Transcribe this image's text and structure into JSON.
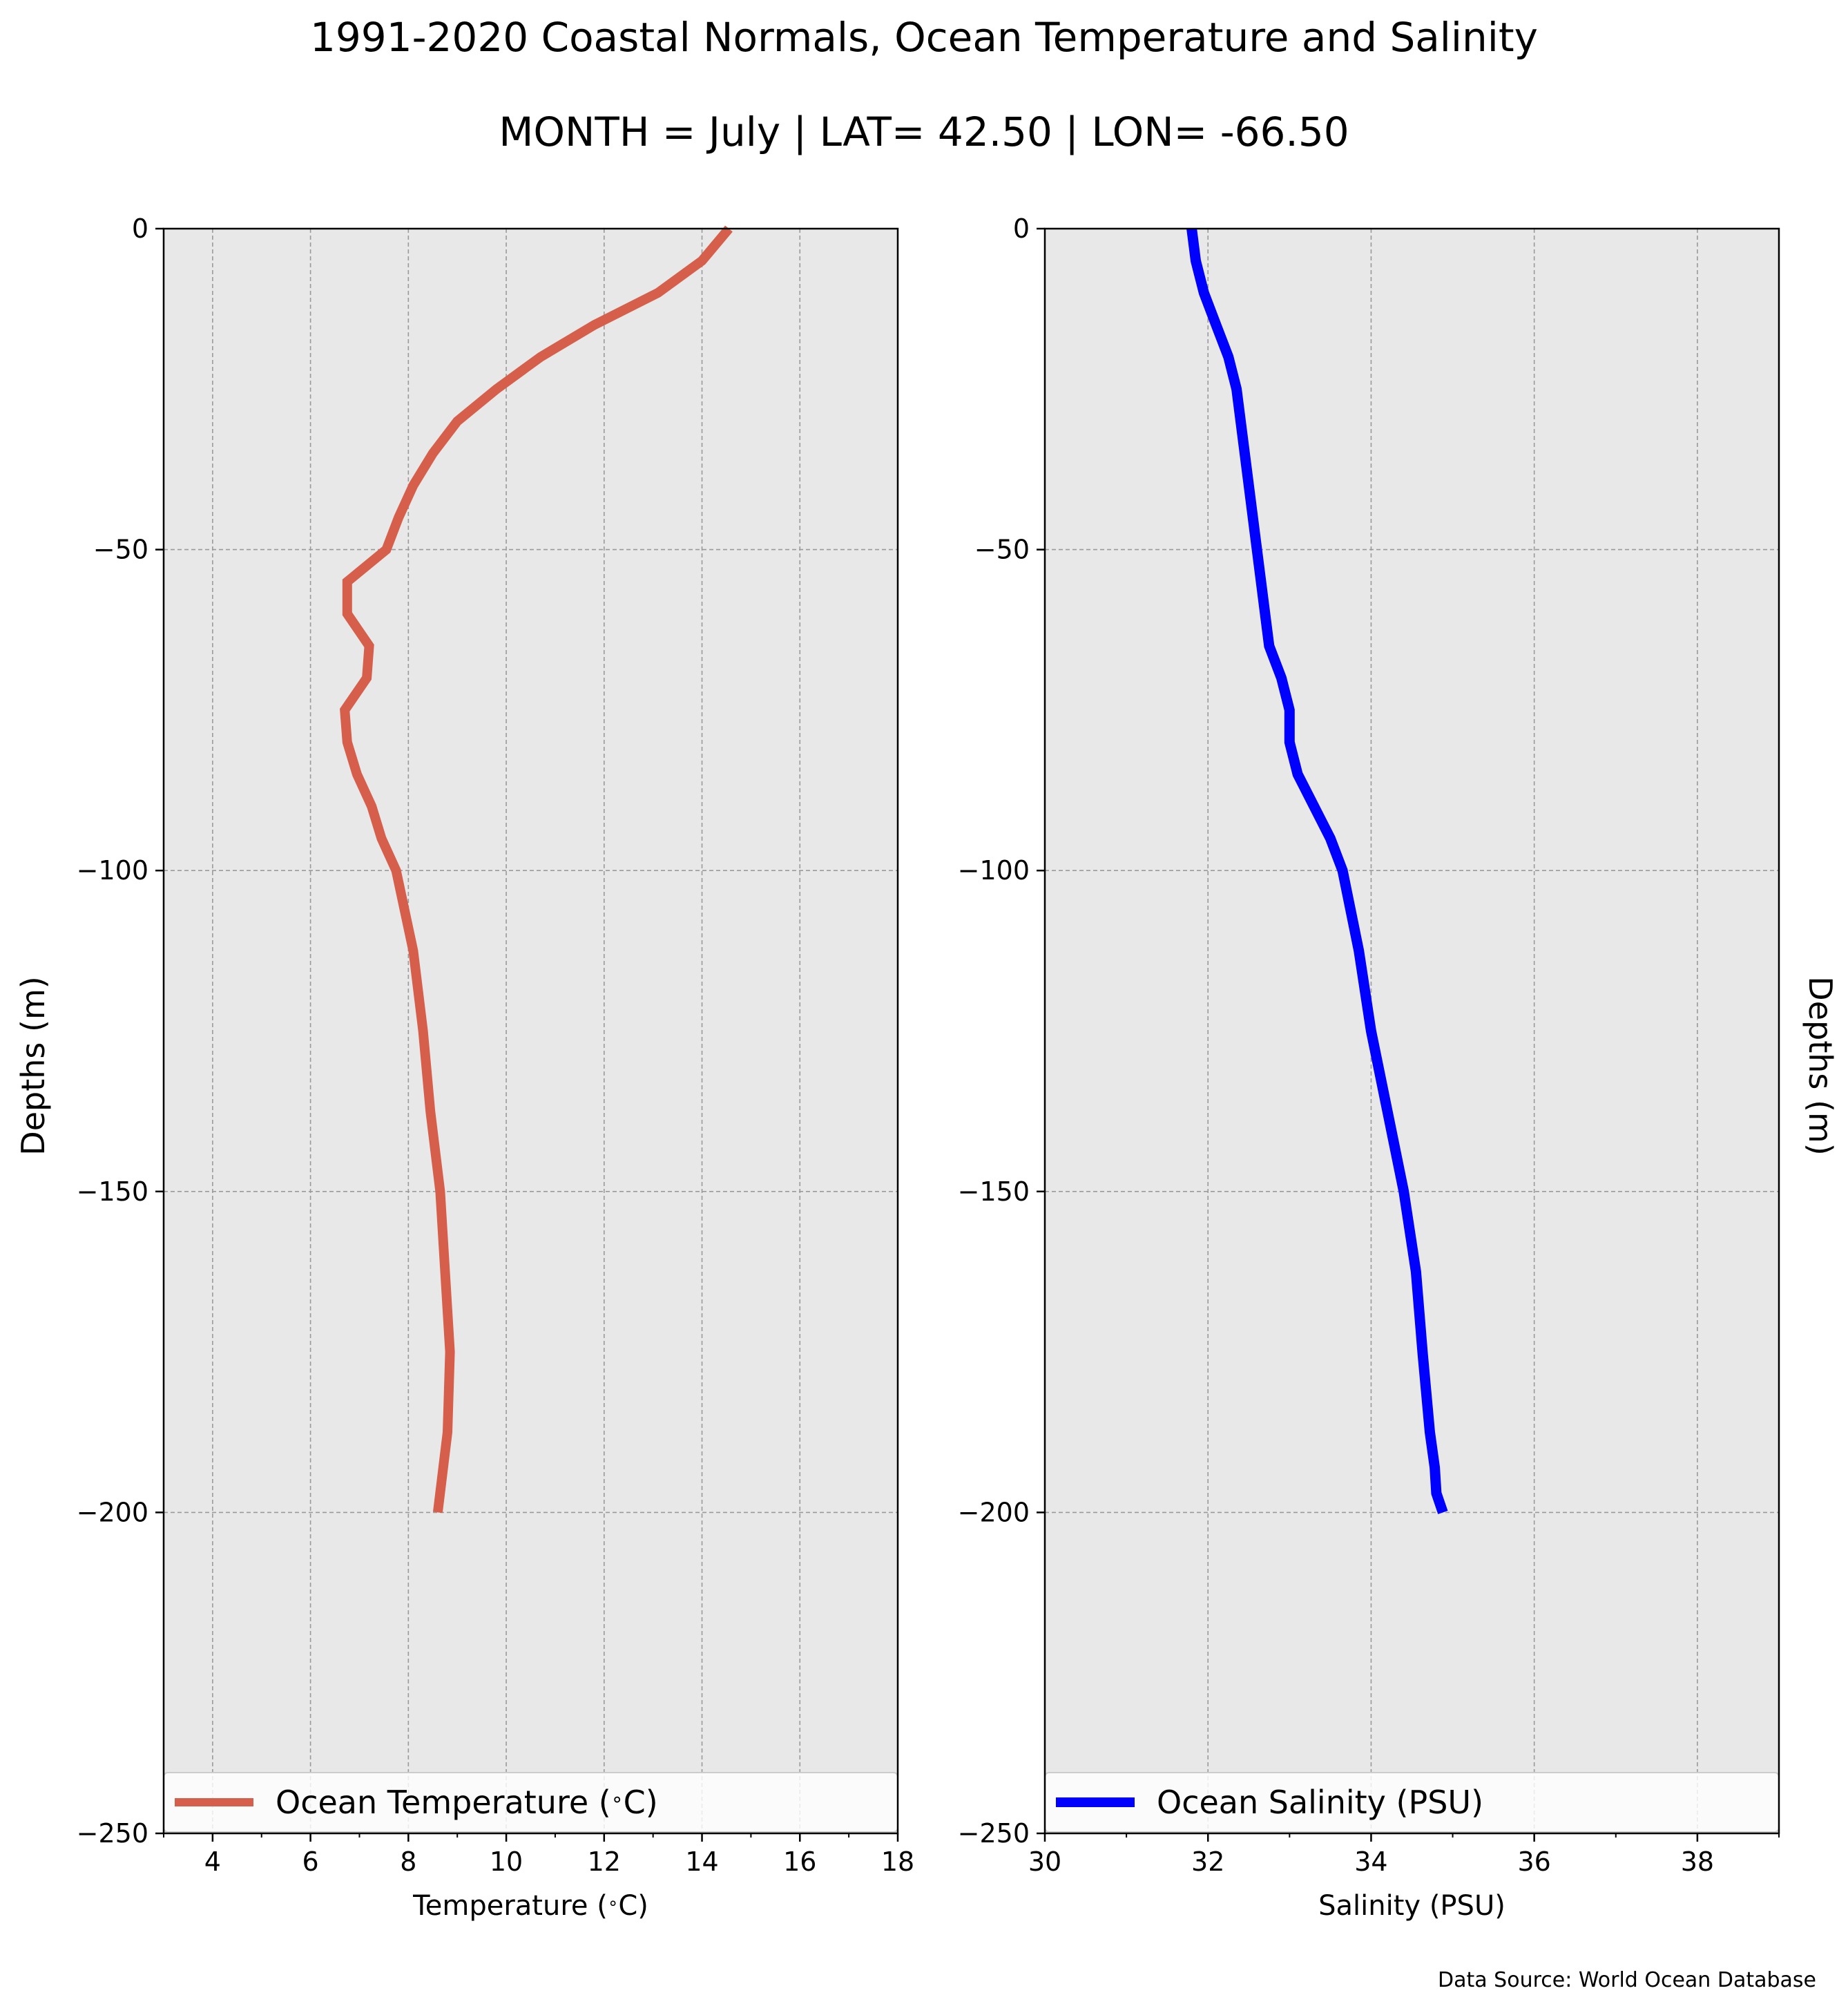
{
  "title": "1991-2020 Coastal Normals, Ocean Temperature and Salinity",
  "subtitle": "MONTH = July | LAT= 42.50 | LON= -66.50",
  "source": "Data Source: World Ocean Database",
  "chart_data": [
    {
      "type": "line",
      "xlabel": "Temperature ($^\\circ$C)",
      "ylabel": "Depths (m)",
      "xlim": [
        3,
        18
      ],
      "ylim": [
        -250,
        0
      ],
      "xticks": [
        "4",
        "6",
        "8",
        "10",
        "12",
        "14",
        "16",
        "18"
      ],
      "yticks": [
        "0",
        "−50",
        "−100",
        "−150",
        "−200",
        "−250"
      ],
      "grid": true,
      "legend_position": "bottom",
      "series": [
        {
          "name": "Ocean Temperature ($^\\circ$C)",
          "color": "#d65f4c",
          "x": [
            14.55,
            14.0,
            13.1,
            11.8,
            10.7,
            9.8,
            9.0,
            8.5,
            8.1,
            7.8,
            7.55,
            6.75,
            6.75,
            7.2,
            7.15,
            6.7,
            6.75,
            6.95,
            7.25,
            7.45,
            7.75,
            8.1,
            8.3,
            8.45,
            8.65,
            8.75,
            8.85,
            8.8,
            8.6
          ],
          "y": [
            0,
            -5,
            -10,
            -15,
            -20,
            -25,
            -30,
            -35,
            -40,
            -45,
            -50,
            -55,
            -60,
            -65,
            -70,
            -75,
            -80,
            -85,
            -90,
            -95,
            -100,
            -112.5,
            -125,
            -137.5,
            -150,
            -162.5,
            -175,
            -187.5,
            -200
          ]
        }
      ]
    },
    {
      "type": "line",
      "xlabel": "Salinity (PSU)",
      "ylabel": "Depths (m)",
      "xlim": [
        30,
        39
      ],
      "ylim": [
        -250,
        0
      ],
      "xticks": [
        "30",
        "32",
        "34",
        "36",
        "38"
      ],
      "yticks": [
        "0",
        "−50",
        "−100",
        "−150",
        "−200",
        "−250"
      ],
      "grid": true,
      "legend_position": "bottom",
      "series": [
        {
          "name": "Ocean Salinity (PSU)",
          "color": "#0000ff",
          "x": [
            31.8,
            31.85,
            31.95,
            32.1,
            32.25,
            32.35,
            32.45,
            32.55,
            32.65,
            32.7,
            32.75,
            32.9,
            33.0,
            33.0,
            33.1,
            33.3,
            33.5,
            33.65,
            33.85,
            34.0,
            34.2,
            34.4,
            34.55,
            34.63,
            34.72,
            34.78,
            34.8,
            34.88
          ],
          "y": [
            0,
            -5,
            -10,
            -15,
            -20,
            -25,
            -35,
            -45,
            -55,
            -60,
            -65,
            -70,
            -75,
            -80,
            -85,
            -90,
            -95,
            -100,
            -112.5,
            -125,
            -137.5,
            -150,
            -162.5,
            -175,
            -187.5,
            -193,
            -197,
            -200
          ]
        }
      ]
    }
  ]
}
